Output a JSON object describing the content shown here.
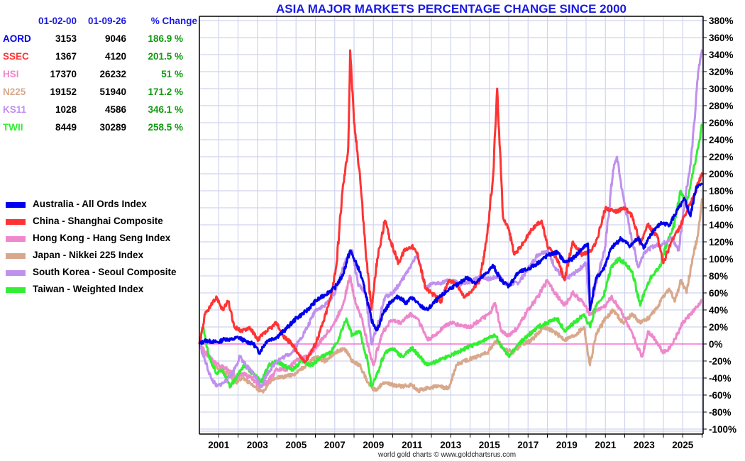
{
  "chart_data": {
    "type": "line",
    "title": "ASIA MAJOR MARKETS PERCENTAGE CHANGE SINCE 2000",
    "xlabel": "",
    "ylabel": "",
    "x_range": [
      2000.0,
      2026.05
    ],
    "ylim": [
      -100,
      380
    ],
    "y_ticks": [
      380,
      360,
      340,
      320,
      300,
      280,
      260,
      240,
      220,
      200,
      180,
      160,
      140,
      120,
      100,
      80,
      60,
      40,
      20,
      0,
      -20,
      -40,
      -60,
      -80,
      -100
    ],
    "y_tick_labels": [
      "380%",
      "360%",
      "340%",
      "320%",
      "300%",
      "280%",
      "260%",
      "240%",
      "220%",
      "200%",
      "180%",
      "160%",
      "140%",
      "120%",
      "100%",
      "80%",
      "60%",
      "40%",
      "20%",
      "0%",
      "-20%",
      "-40%",
      "-60%",
      "-80%",
      "-100%"
    ],
    "x_ticks": [
      2001,
      2003,
      2005,
      2007,
      2009,
      2011,
      2013,
      2015,
      2017,
      2019,
      2021,
      2023,
      2025
    ],
    "x_tick_labels": [
      "2001",
      "2003",
      "2005",
      "2007",
      "2009",
      "2011",
      "2013",
      "2015",
      "2017",
      "2019",
      "2021",
      "2023",
      "2025"
    ],
    "grid": true,
    "legend_position": "left",
    "zero_line_color": "#ff33cc",
    "series": [
      {
        "name": "Australia - All Ords Index",
        "code": "AORD",
        "color": "#0000ee",
        "x": [
          2000.0,
          2000.3,
          2000.6,
          2001.0,
          2001.3,
          2001.7,
          2002.0,
          2002.4,
          2002.8,
          2003.1,
          2003.5,
          2004.0,
          2004.5,
          2005.0,
          2005.5,
          2006.0,
          2006.5,
          2007.0,
          2007.4,
          2007.8,
          2008.0,
          2008.3,
          2008.6,
          2008.9,
          2009.2,
          2009.5,
          2009.9,
          2010.3,
          2010.7,
          2011.0,
          2011.4,
          2011.8,
          2012.2,
          2012.6,
          2013.0,
          2013.4,
          2013.8,
          2014.3,
          2014.8,
          2015.2,
          2015.6,
          2016.0,
          2016.5,
          2017.0,
          2017.5,
          2018.0,
          2018.5,
          2018.9,
          2019.3,
          2019.8,
          2020.1,
          2020.2,
          2020.5,
          2020.9,
          2021.3,
          2021.8,
          2022.3,
          2022.7,
          2023.0,
          2023.5,
          2023.9,
          2024.3,
          2024.8,
          2025.1,
          2025.4,
          2025.7,
          2026.0
        ],
        "y": [
          0,
          4,
          3,
          2,
          6,
          5,
          8,
          3,
          0,
          -10,
          4,
          8,
          18,
          30,
          38,
          50,
          58,
          66,
          80,
          110,
          100,
          85,
          60,
          28,
          16,
          36,
          50,
          56,
          48,
          55,
          45,
          40,
          50,
          58,
          66,
          70,
          78,
          72,
          82,
          92,
          75,
          68,
          84,
          88,
          95,
          104,
          108,
          96,
          100,
          112,
          118,
          40,
          76,
          88,
          112,
          124,
          115,
          125,
          113,
          134,
          142,
          140,
          160,
          170,
          150,
          185,
          186.9
        ]
      },
      {
        "name": "China - Shanghai Composite",
        "code": "SSEC",
        "color": "#ff3333",
        "x": [
          2000.0,
          2000.3,
          2000.6,
          2000.9,
          2001.2,
          2001.5,
          2001.8,
          2002.2,
          2002.6,
          2003.0,
          2003.5,
          2004.0,
          2004.3,
          2004.8,
          2005.2,
          2005.5,
          2006.0,
          2006.4,
          2006.8,
          2007.1,
          2007.4,
          2007.7,
          2007.8,
          2008.0,
          2008.3,
          2008.6,
          2008.9,
          2009.2,
          2009.6,
          2009.9,
          2010.3,
          2010.6,
          2011.0,
          2011.3,
          2011.7,
          2012.0,
          2012.5,
          2012.9,
          2013.3,
          2013.7,
          2014.0,
          2014.5,
          2014.9,
          2015.2,
          2015.4,
          2015.5,
          2015.7,
          2016.0,
          2016.3,
          2016.8,
          2017.2,
          2017.7,
          2018.0,
          2018.5,
          2018.9,
          2019.3,
          2019.8,
          2020.3,
          2020.6,
          2021.0,
          2021.5,
          2022.0,
          2022.4,
          2022.8,
          2023.2,
          2023.7,
          2024.0,
          2024.4,
          2024.8,
          2025.2,
          2025.6,
          2026.0
        ],
        "y": [
          0,
          35,
          45,
          55,
          40,
          50,
          20,
          15,
          20,
          5,
          15,
          25,
          10,
          0,
          -15,
          -20,
          0,
          25,
          55,
          95,
          180,
          230,
          345,
          260,
          200,
          110,
          40,
          100,
          145,
          120,
          95,
          110,
          115,
          105,
          65,
          60,
          50,
          75,
          70,
          55,
          60,
          75,
          130,
          200,
          300,
          250,
          150,
          135,
          105,
          120,
          135,
          145,
          115,
          100,
          75,
          120,
          105,
          110,
          125,
          160,
          155,
          160,
          150,
          118,
          140,
          125,
          95,
          120,
          135,
          155,
          175,
          201.5
        ]
      },
      {
        "name": "Hong Kong - Hang Seng Index",
        "code": "HSI",
        "color": "#ee88cc",
        "x": [
          2000.0,
          2000.3,
          2000.7,
          2001.0,
          2001.5,
          2001.9,
          2002.3,
          2002.7,
          2003.1,
          2003.5,
          2004.0,
          2004.5,
          2005.0,
          2005.5,
          2006.0,
          2006.5,
          2007.0,
          2007.4,
          2007.8,
          2008.0,
          2008.4,
          2008.8,
          2009.0,
          2009.4,
          2009.9,
          2010.4,
          2010.9,
          2011.3,
          2011.8,
          2012.2,
          2012.6,
          2013.0,
          2013.5,
          2014.0,
          2014.5,
          2015.0,
          2015.3,
          2015.6,
          2016.0,
          2016.5,
          2017.0,
          2017.5,
          2018.0,
          2018.4,
          2018.9,
          2019.3,
          2019.8,
          2020.2,
          2020.6,
          2021.0,
          2021.3,
          2021.8,
          2022.2,
          2022.6,
          2022.9,
          2023.2,
          2023.6,
          2024.0,
          2024.3,
          2024.7,
          2025.0,
          2025.4,
          2025.8,
          2026.0
        ],
        "y": [
          0,
          -10,
          -20,
          -25,
          -30,
          -40,
          -35,
          -40,
          -50,
          -45,
          -30,
          -30,
          -20,
          -15,
          -5,
          10,
          25,
          45,
          80,
          55,
          30,
          -10,
          -25,
          10,
          28,
          25,
          35,
          30,
          5,
          10,
          20,
          25,
          22,
          20,
          28,
          35,
          48,
          15,
          10,
          20,
          40,
          55,
          75,
          60,
          45,
          60,
          50,
          35,
          40,
          45,
          55,
          40,
          20,
          0,
          -15,
          15,
          5,
          -10,
          -5,
          10,
          25,
          35,
          45,
          51
        ]
      },
      {
        "name": "Japan - Nikkei 225 Index",
        "code": "N225",
        "color": "#d8a88c",
        "x": [
          2000.0,
          2000.3,
          2000.7,
          2001.0,
          2001.5,
          2001.9,
          2002.3,
          2002.8,
          2003.3,
          2003.6,
          2004.0,
          2004.5,
          2005.0,
          2005.5,
          2006.0,
          2006.5,
          2007.0,
          2007.5,
          2007.9,
          2008.3,
          2008.7,
          2009.1,
          2009.5,
          2010.0,
          2010.5,
          2011.0,
          2011.3,
          2011.8,
          2012.3,
          2012.9,
          2013.3,
          2013.7,
          2014.3,
          2014.9,
          2015.4,
          2015.7,
          2016.2,
          2016.7,
          2017.2,
          2017.8,
          2018.3,
          2018.9,
          2019.4,
          2019.9,
          2020.2,
          2020.5,
          2021.0,
          2021.4,
          2021.9,
          2022.4,
          2022.8,
          2023.2,
          2023.6,
          2024.0,
          2024.3,
          2024.6,
          2024.9,
          2025.2,
          2025.5,
          2025.8,
          2026.0
        ],
        "y": [
          0,
          -10,
          -20,
          -30,
          -35,
          -45,
          -40,
          -50,
          -57,
          -45,
          -40,
          -38,
          -35,
          -25,
          -15,
          -20,
          -10,
          -5,
          -20,
          -25,
          -45,
          -55,
          -45,
          -48,
          -50,
          -48,
          -55,
          -52,
          -50,
          -52,
          -25,
          -20,
          -15,
          -10,
          5,
          -5,
          -10,
          0,
          5,
          20,
          15,
          5,
          10,
          20,
          -25,
          10,
          30,
          40,
          25,
          35,
          25,
          30,
          40,
          55,
          65,
          50,
          75,
          60,
          100,
          130,
          171.2
        ]
      },
      {
        "name": "South Korea - Seoul Composite",
        "code": "KS11",
        "color": "#c090ee",
        "x": [
          2000.0,
          2000.3,
          2000.6,
          2000.9,
          2001.3,
          2001.7,
          2002.1,
          2002.4,
          2002.8,
          2003.2,
          2003.5,
          2004.0,
          2004.4,
          2004.8,
          2005.2,
          2005.6,
          2006.0,
          2006.5,
          2007.0,
          2007.5,
          2007.9,
          2008.2,
          2008.6,
          2008.9,
          2009.2,
          2009.6,
          2010.0,
          2010.5,
          2011.0,
          2011.3,
          2011.7,
          2012.0,
          2012.5,
          2013.0,
          2013.5,
          2014.0,
          2014.5,
          2015.0,
          2015.5,
          2015.9,
          2016.5,
          2017.0,
          2017.5,
          2018.0,
          2018.4,
          2018.9,
          2019.5,
          2020.0,
          2020.2,
          2020.6,
          2021.0,
          2021.4,
          2021.6,
          2021.9,
          2022.3,
          2022.7,
          2023.0,
          2023.5,
          2024.0,
          2024.4,
          2024.8,
          2025.1,
          2025.4,
          2025.6,
          2025.8,
          2026.0
        ],
        "y": [
          0,
          -20,
          -40,
          -50,
          -45,
          -35,
          -15,
          -25,
          -35,
          -50,
          -35,
          -20,
          -15,
          -10,
          5,
          20,
          40,
          45,
          60,
          95,
          110,
          70,
          60,
          0,
          20,
          55,
          60,
          75,
          95,
          105,
          65,
          70,
          72,
          75,
          70,
          72,
          80,
          76,
          80,
          70,
          72,
          88,
          105,
          110,
          90,
          75,
          85,
          95,
          40,
          80,
          115,
          205,
          220,
          175,
          130,
          90,
          108,
          115,
          118,
          125,
          110,
          170,
          210,
          260,
          320,
          346.1
        ]
      },
      {
        "name": "Taiwan - Weighted Index",
        "code": "TWII",
        "color": "#33ee33",
        "x": [
          2000.0,
          2000.2,
          2000.5,
          2000.9,
          2001.2,
          2001.6,
          2001.9,
          2002.3,
          2002.8,
          2003.2,
          2003.6,
          2004.0,
          2004.3,
          2004.8,
          2005.3,
          2005.8,
          2006.3,
          2006.8,
          2007.2,
          2007.6,
          2007.9,
          2008.3,
          2008.7,
          2008.9,
          2009.2,
          2009.6,
          2010.0,
          2010.5,
          2011.0,
          2011.4,
          2011.8,
          2012.3,
          2012.8,
          2013.3,
          2013.8,
          2014.3,
          2014.8,
          2015.3,
          2015.7,
          2016.0,
          2016.5,
          2017.0,
          2017.5,
          2018.0,
          2018.5,
          2018.9,
          2019.4,
          2019.9,
          2020.2,
          2020.5,
          2020.9,
          2021.3,
          2021.7,
          2022.0,
          2022.4,
          2022.8,
          2023.0,
          2023.4,
          2023.8,
          2024.2,
          2024.5,
          2024.9,
          2025.2,
          2025.5,
          2025.8,
          2026.0
        ],
        "y": [
          0,
          20,
          -15,
          -35,
          -30,
          -50,
          -40,
          -25,
          -35,
          -45,
          -25,
          -20,
          -25,
          -30,
          -20,
          -25,
          -15,
          -10,
          5,
          30,
          10,
          15,
          -20,
          -50,
          -35,
          -10,
          -5,
          -15,
          -5,
          -15,
          -25,
          -20,
          -15,
          -10,
          -5,
          0,
          5,
          10,
          -5,
          -15,
          0,
          10,
          20,
          25,
          30,
          15,
          25,
          35,
          20,
          45,
          55,
          90,
          100,
          95,
          85,
          45,
          60,
          80,
          90,
          120,
          135,
          180,
          165,
          200,
          230,
          258.5
        ]
      }
    ]
  },
  "table": {
    "headers": [
      "",
      "01-02-00",
      "01-09-26",
      "% Change"
    ],
    "rows": [
      {
        "code": "AORD",
        "start": "3153",
        "end": "9046",
        "change": "186.9 %",
        "color": "#0000ee"
      },
      {
        "code": "SSEC",
        "start": "1367",
        "end": "4120",
        "change": "201.5 %",
        "color": "#ff3333"
      },
      {
        "code": "HSI",
        "start": "17370",
        "end": "26232",
        "change": "51 %",
        "color": "#ee88cc"
      },
      {
        "code": "N225",
        "start": "19152",
        "end": "51940",
        "change": "171.2 %",
        "color": "#d8a88c"
      },
      {
        "code": "KS11",
        "start": "1028",
        "end": "4586",
        "change": "346.1 %",
        "color": "#c090ee"
      },
      {
        "code": "TWII",
        "start": "8449",
        "end": "30289",
        "change": "258.5 %",
        "color": "#33ee33"
      }
    ],
    "header_color": "#1a1ae6",
    "change_color": "#119911"
  },
  "footer": "world gold charts © www.goldchartsrus.com"
}
